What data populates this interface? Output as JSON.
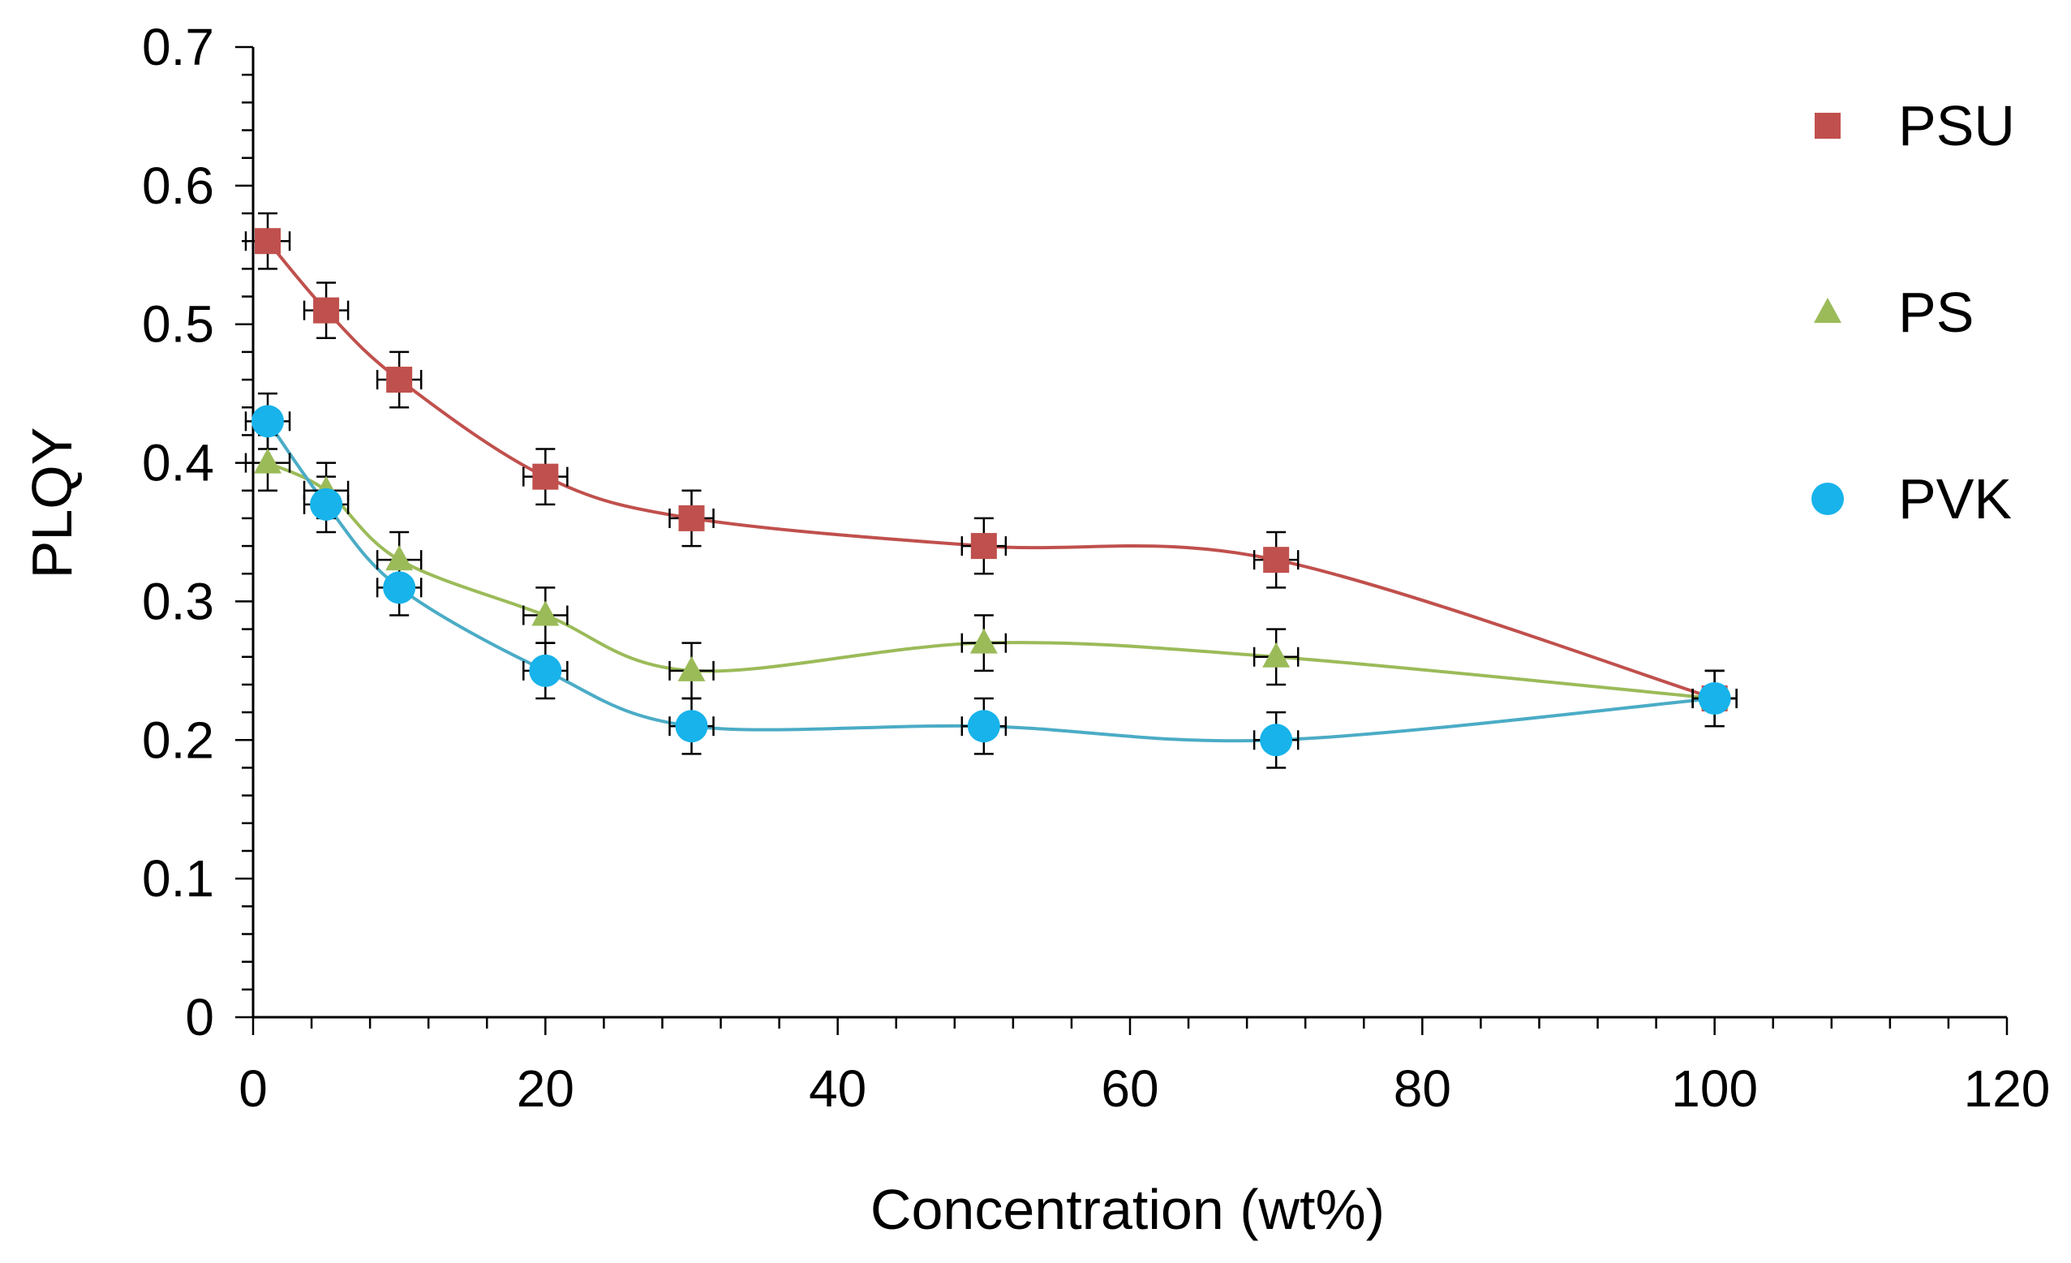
{
  "chart_data": {
    "type": "scatter",
    "title": "",
    "xlabel": "Concentration (wt%)",
    "ylabel": "PLQY",
    "xlim": [
      0,
      120
    ],
    "ylim": [
      0,
      0.7
    ],
    "x_ticks": [
      0,
      20,
      40,
      60,
      80,
      100,
      120
    ],
    "x_tick_labels": [
      "0",
      "20",
      "40",
      "60",
      "80",
      "100",
      "120"
    ],
    "y_ticks": [
      0,
      0.1,
      0.2,
      0.3,
      0.4,
      0.5,
      0.6,
      0.7
    ],
    "y_tick_labels": [
      "0",
      "0.1",
      "0.2",
      "0.3",
      "0.4",
      "0.5",
      "0.6",
      "0.7"
    ],
    "grid": false,
    "legend_position": "right",
    "x_error": 1.5,
    "y_error": 0.02,
    "series": [
      {
        "name": "PSU",
        "marker": "square",
        "color": "#C0504D",
        "line_color": "#C0504D",
        "x": [
          1,
          5,
          10,
          20,
          30,
          50,
          70,
          100
        ],
        "y": [
          0.56,
          0.51,
          0.46,
          0.39,
          0.36,
          0.34,
          0.33,
          0.23
        ]
      },
      {
        "name": "PS",
        "marker": "triangle",
        "color": "#9BBB59",
        "line_color": "#9BBB59",
        "x": [
          1,
          5,
          10,
          20,
          30,
          50,
          70,
          100
        ],
        "y": [
          0.4,
          0.38,
          0.33,
          0.29,
          0.25,
          0.27,
          0.26,
          0.23
        ]
      },
      {
        "name": "PVK",
        "marker": "circle",
        "color": "#17B3EA",
        "line_color": "#4BACC6",
        "x": [
          1,
          5,
          10,
          20,
          30,
          50,
          70,
          100
        ],
        "y": [
          0.43,
          0.37,
          0.31,
          0.25,
          0.21,
          0.21,
          0.2,
          0.23
        ]
      }
    ]
  }
}
